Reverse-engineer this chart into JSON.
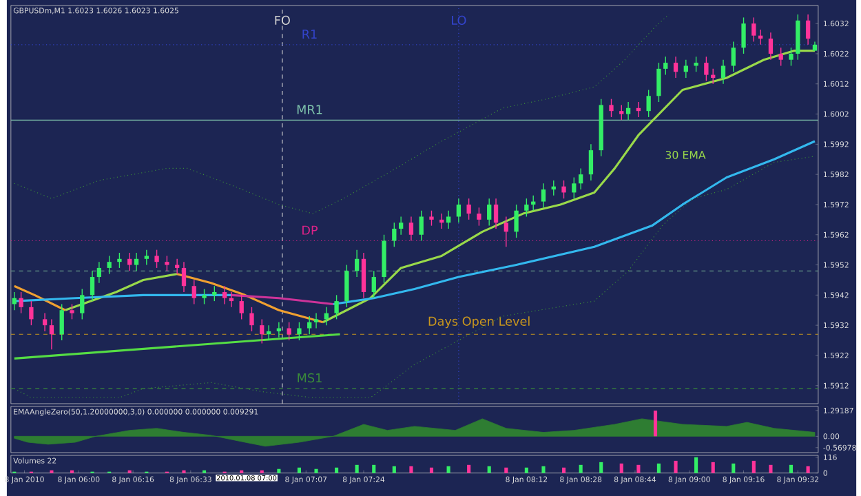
{
  "chart_data": [
    {
      "type": "candlestick",
      "title": "GBPUSDm,M1 1.6023 1.6026 1.6023 1.6025",
      "xlim": [
        "2010-01-08T05:40",
        "2010-01-08T09:38"
      ],
      "ylim": [
        1.5906,
        1.6038
      ],
      "tick_labels": "y",
      "yticks": [
        1.5912,
        1.5922,
        1.5932,
        1.5942,
        1.5952,
        1.5962,
        1.5972,
        1.5982,
        1.5992,
        1.6002,
        1.6012,
        1.6022,
        1.6032
      ],
      "x": [
        "2010-01-08T05:41",
        "2010-01-08T05:43",
        "2010-01-08T05:46",
        "2010-01-08T05:50",
        "2010-01-08T05:52",
        "2010-01-08T05:55",
        "2010-01-08T05:58",
        "2010-01-08T06:01",
        "2010-01-08T06:04",
        "2010-01-08T06:06",
        "2010-01-08T06:09",
        "2010-01-08T06:12",
        "2010-01-08T06:15",
        "2010-01-08T06:17",
        "2010-01-08T06:20",
        "2010-01-08T06:23",
        "2010-01-08T06:26",
        "2010-01-08T06:29",
        "2010-01-08T06:31",
        "2010-01-08T06:34",
        "2010-01-08T06:37",
        "2010-01-08T06:40",
        "2010-01-08T06:43",
        "2010-01-08T06:45",
        "2010-01-08T06:48",
        "2010-01-08T06:51",
        "2010-01-08T06:54",
        "2010-01-08T06:56",
        "2010-01-08T06:59",
        "2010-01-08T07:02",
        "2010-01-08T07:05",
        "2010-01-08T07:08",
        "2010-01-08T07:10",
        "2010-01-08T07:13",
        "2010-01-08T07:16",
        "2010-01-08T07:19",
        "2010-01-08T07:22",
        "2010-01-08T07:24",
        "2010-01-08T07:27",
        "2010-01-08T07:30",
        "2010-01-08T07:33",
        "2010-01-08T07:35",
        "2010-01-08T07:38",
        "2010-01-08T07:41",
        "2010-01-08T07:44",
        "2010-01-08T07:47",
        "2010-01-08T07:49",
        "2010-01-08T07:52",
        "2010-01-08T07:55",
        "2010-01-08T07:58",
        "2010-01-08T08:01",
        "2010-01-08T08:03",
        "2010-01-08T08:06",
        "2010-01-08T08:09",
        "2010-01-08T08:12",
        "2010-01-08T08:14",
        "2010-01-08T08:17",
        "2010-01-08T08:20",
        "2010-01-08T08:23",
        "2010-01-08T08:26",
        "2010-01-08T08:28",
        "2010-01-08T08:31",
        "2010-01-08T08:34",
        "2010-01-08T08:37",
        "2010-01-08T08:40",
        "2010-01-08T08:42",
        "2010-01-08T08:45",
        "2010-01-08T08:48",
        "2010-01-08T08:51",
        "2010-01-08T08:53",
        "2010-01-08T08:56",
        "2010-01-08T08:59",
        "2010-01-08T09:02",
        "2010-01-08T09:05",
        "2010-01-08T09:07",
        "2010-01-08T09:10",
        "2010-01-08T09:13",
        "2010-01-08T09:16",
        "2010-01-08T09:19",
        "2010-01-08T09:21",
        "2010-01-08T09:24",
        "2010-01-08T09:27",
        "2010-01-08T09:30",
        "2010-01-08T09:32",
        "2010-01-08T09:35",
        "2010-01-08T09:37"
      ],
      "ohlc": [
        [
          1.5939,
          1.5943,
          1.5937,
          1.5941
        ],
        [
          1.5941,
          1.5943,
          1.5936,
          1.5938
        ],
        [
          1.5938,
          1.594,
          1.5932,
          1.5934
        ],
        [
          1.5934,
          1.5936,
          1.593,
          1.5932
        ],
        [
          1.5932,
          1.5934,
          1.5924,
          1.5929
        ],
        [
          1.5929,
          1.5939,
          1.5927,
          1.5937
        ],
        [
          1.5937,
          1.5939,
          1.5934,
          1.5936
        ],
        [
          1.5936,
          1.5944,
          1.5934,
          1.5942
        ],
        [
          1.5942,
          1.595,
          1.594,
          1.5948
        ],
        [
          1.5948,
          1.5953,
          1.5946,
          1.5951
        ],
        [
          1.5951,
          1.5955,
          1.5949,
          1.5953
        ],
        [
          1.5953,
          1.5956,
          1.5951,
          1.5954
        ],
        [
          1.5954,
          1.5956,
          1.595,
          1.5952
        ],
        [
          1.5952,
          1.5956,
          1.595,
          1.5954
        ],
        [
          1.5954,
          1.5957,
          1.5952,
          1.5955
        ],
        [
          1.5955,
          1.5957,
          1.5951,
          1.5953
        ],
        [
          1.5953,
          1.5955,
          1.595,
          1.5952
        ],
        [
          1.5952,
          1.5954,
          1.5949,
          1.5951
        ],
        [
          1.5951,
          1.5953,
          1.5943,
          1.5945
        ],
        [
          1.5945,
          1.5947,
          1.5939,
          1.5941
        ],
        [
          1.5941,
          1.5944,
          1.5939,
          1.5942
        ],
        [
          1.5942,
          1.5945,
          1.594,
          1.5943
        ],
        [
          1.5943,
          1.5945,
          1.5939,
          1.5941
        ],
        [
          1.5941,
          1.5943,
          1.5938,
          1.594
        ],
        [
          1.594,
          1.5942,
          1.5934,
          1.5936
        ],
        [
          1.5936,
          1.5938,
          1.593,
          1.5932
        ],
        [
          1.5932,
          1.5934,
          1.5926,
          1.5929
        ],
        [
          1.5929,
          1.5932,
          1.5927,
          1.593
        ],
        [
          1.593,
          1.5933,
          1.5928,
          1.5931
        ],
        [
          1.5931,
          1.5933,
          1.5927,
          1.5929
        ],
        [
          1.5929,
          1.5933,
          1.5927,
          1.5931
        ],
        [
          1.5931,
          1.5935,
          1.5929,
          1.5933
        ],
        [
          1.5933,
          1.5936,
          1.5931,
          1.5934
        ],
        [
          1.5934,
          1.5938,
          1.5932,
          1.5936
        ],
        [
          1.5936,
          1.5942,
          1.5934,
          1.594
        ],
        [
          1.594,
          1.5952,
          1.5938,
          1.595
        ],
        [
          1.595,
          1.5957,
          1.5948,
          1.5954
        ],
        [
          1.5954,
          1.5956,
          1.5941,
          1.5943
        ],
        [
          1.5943,
          1.595,
          1.5941,
          1.5948
        ],
        [
          1.5948,
          1.5962,
          1.5946,
          1.596
        ],
        [
          1.596,
          1.5966,
          1.5958,
          1.5964
        ],
        [
          1.5964,
          1.5968,
          1.5962,
          1.5966
        ],
        [
          1.5966,
          1.5968,
          1.596,
          1.5962
        ],
        [
          1.5962,
          1.597,
          1.596,
          1.5968
        ],
        [
          1.5968,
          1.597,
          1.5965,
          1.5967
        ],
        [
          1.5967,
          1.5969,
          1.5964,
          1.5966
        ],
        [
          1.5966,
          1.597,
          1.5964,
          1.5968
        ],
        [
          1.5968,
          1.5974,
          1.5966,
          1.5972
        ],
        [
          1.5972,
          1.5974,
          1.5967,
          1.5969
        ],
        [
          1.5969,
          1.5971,
          1.5965,
          1.5967
        ],
        [
          1.5967,
          1.5974,
          1.5965,
          1.5972
        ],
        [
          1.5972,
          1.5974,
          1.5964,
          1.5966
        ],
        [
          1.5966,
          1.5968,
          1.5958,
          1.5963
        ],
        [
          1.5963,
          1.5972,
          1.5961,
          1.597
        ],
        [
          1.597,
          1.5974,
          1.5968,
          1.5972
        ],
        [
          1.5972,
          1.5975,
          1.597,
          1.5973
        ],
        [
          1.5973,
          1.5979,
          1.5971,
          1.5977
        ],
        [
          1.5977,
          1.598,
          1.5975,
          1.5978
        ],
        [
          1.5978,
          1.598,
          1.5974,
          1.5976
        ],
        [
          1.5976,
          1.5981,
          1.5974,
          1.5979
        ],
        [
          1.5979,
          1.5984,
          1.5977,
          1.5982
        ],
        [
          1.5982,
          1.5992,
          1.598,
          1.599
        ],
        [
          1.599,
          1.6007,
          1.5988,
          1.6005
        ],
        [
          1.6005,
          1.6007,
          1.6001,
          1.6003
        ],
        [
          1.6003,
          1.6005,
          1.6,
          1.6002
        ],
        [
          1.6002,
          1.6006,
          1.6,
          1.6004
        ],
        [
          1.6004,
          1.6006,
          1.6001,
          1.6003
        ],
        [
          1.6003,
          1.601,
          1.6001,
          1.6008
        ],
        [
          1.6008,
          1.6019,
          1.6006,
          1.6017
        ],
        [
          1.6017,
          1.6021,
          1.6015,
          1.6019
        ],
        [
          1.6019,
          1.6021,
          1.6014,
          1.6016
        ],
        [
          1.6016,
          1.602,
          1.6014,
          1.6018
        ],
        [
          1.6018,
          1.6021,
          1.6016,
          1.6019
        ],
        [
          1.6019,
          1.6021,
          1.6013,
          1.6015
        ],
        [
          1.6015,
          1.6017,
          1.6012,
          1.6014
        ],
        [
          1.6014,
          1.602,
          1.6012,
          1.6018
        ],
        [
          1.6018,
          1.6026,
          1.6016,
          1.6024
        ],
        [
          1.6024,
          1.6034,
          1.6022,
          1.6032
        ],
        [
          1.6032,
          1.6034,
          1.6026,
          1.6028
        ],
        [
          1.6028,
          1.603,
          1.6025,
          1.6027
        ],
        [
          1.6027,
          1.6029,
          1.602,
          1.6022
        ],
        [
          1.6022,
          1.6024,
          1.6018,
          1.602
        ],
        [
          1.602,
          1.6024,
          1.6018,
          1.6022
        ],
        [
          1.6022,
          1.6035,
          1.602,
          1.6033
        ],
        [
          1.6033,
          1.6035,
          1.6025,
          1.6027
        ],
        [
          1.6023,
          1.6026,
          1.6023,
          1.6025
        ]
      ],
      "colors": [
        "#33ee66",
        "#ff3399",
        "#ff3399",
        "#ff3399",
        "#ff3399",
        "#33ee66",
        "#ff3399",
        "#33ee66",
        "#33ee66",
        "#33ee66",
        "#33ee66",
        "#33ee66",
        "#ff3399",
        "#33ee66",
        "#33ee66",
        "#ff3399",
        "#ff3399",
        "#ff3399",
        "#ff3399",
        "#ff3399",
        "#33ee66",
        "#33ee66",
        "#ff3399",
        "#ff3399",
        "#ff3399",
        "#ff3399",
        "#ff3399",
        "#33ee66",
        "#33ee66",
        "#ff3399",
        "#33ee66",
        "#33ee66",
        "#33ee66",
        "#33ee66",
        "#33ee66",
        "#33ee66",
        "#33ee66",
        "#ff3399",
        "#33ee66",
        "#33ee66",
        "#33ee66",
        "#33ee66",
        "#ff3399",
        "#33ee66",
        "#ff3399",
        "#ff3399",
        "#33ee66",
        "#33ee66",
        "#ff3399",
        "#ff3399",
        "#33ee66",
        "#ff3399",
        "#ff3399",
        "#33ee66",
        "#33ee66",
        "#33ee66",
        "#33ee66",
        "#33ee66",
        "#ff3399",
        "#33ee66",
        "#33ee66",
        "#33ee66",
        "#33ee66",
        "#ff3399",
        "#ff3399",
        "#33ee66",
        "#ff3399",
        "#33ee66",
        "#33ee66",
        "#33ee66",
        "#ff3399",
        "#33ee66",
        "#33ee66",
        "#ff3399",
        "#ff3399",
        "#33ee66",
        "#33ee66",
        "#33ee66",
        "#ff3399",
        "#ff3399",
        "#ff3399",
        "#ff3399",
        "#33ee66",
        "#33ee66",
        "#ff3399",
        "#33ee66"
      ],
      "series": [
        {
          "name": "30 EMA",
          "type": "line",
          "color": "#99d94a",
          "x": [
            "2010-01-08T05:56",
            "2010-01-08T06:11",
            "2010-01-08T06:19",
            "2010-01-08T06:29",
            "2010-01-08T06:54",
            "2010-01-08T07:12",
            "2010-01-08T07:19",
            "2010-01-08T07:26",
            "2010-01-08T07:35",
            "2010-01-08T07:47",
            "2010-01-08T07:59",
            "2010-01-08T08:11",
            "2010-01-08T08:22",
            "2010-01-08T08:32",
            "2010-01-08T08:38",
            "2010-01-08T08:45",
            "2010-01-08T08:58",
            "2010-01-08T09:11",
            "2010-01-08T09:22",
            "2010-01-08T09:31",
            "2010-01-08T09:37"
          ],
          "values": [
            1.5937,
            1.5943,
            1.5947,
            1.5949,
            null,
            1.5933,
            1.5937,
            1.5941,
            1.5951,
            1.5955,
            1.5963,
            1.5969,
            1.5972,
            1.5976,
            1.5984,
            1.5995,
            1.601,
            1.6014,
            1.602,
            1.6023,
            1.6023
          ]
        },
        {
          "type": "line",
          "color": "#f0a030",
          "x": [
            "2010-01-08T05:41",
            "2010-01-08T05:47",
            "2010-01-08T05:56",
            "2010-01-08T06:12",
            "2010-01-08T06:29",
            "2010-01-08T06:39",
            "2010-01-08T06:49",
            "2010-01-08T06:59",
            "2010-01-08T07:12"
          ],
          "values": [
            1.5945,
            1.5942,
            1.5937,
            null,
            1.5949,
            1.5946,
            1.5942,
            1.5937,
            1.5933
          ]
        },
        {
          "type": "line",
          "color": "#33b8ee",
          "x": [
            "2010-01-08T05:41",
            "2010-01-08T05:59",
            "2010-01-08T06:19",
            "2010-01-08T06:29",
            "2010-01-08T06:45",
            "2010-01-08T07:00",
            "2010-01-08T07:15",
            "2010-01-08T07:27",
            "2010-01-08T07:39",
            "2010-01-08T07:52",
            "2010-01-08T08:09",
            "2010-01-08T08:32",
            "2010-01-08T08:49",
            "2010-01-08T08:58",
            "2010-01-08T09:11",
            "2010-01-08T09:25",
            "2010-01-08T09:37"
          ],
          "values": [
            1.594,
            1.5941,
            1.5942,
            1.5942,
            1.5942,
            null,
            1.5939,
            1.5941,
            1.5944,
            1.5948,
            1.5952,
            1.5958,
            1.5965,
            1.5972,
            1.5981,
            1.5987,
            1.5993
          ]
        },
        {
          "type": "line",
          "color": "#cc3399",
          "x": [
            "2010-01-08T06:45",
            "2010-01-08T06:59",
            "2010-01-08T07:15"
          ],
          "values": [
            1.5942,
            1.5941,
            1.5939
          ]
        },
        {
          "type": "line",
          "color": "#55dd44",
          "x": [
            "2010-01-08T05:41",
            "2010-01-08T07:17"
          ],
          "values": [
            1.5921,
            1.5929
          ]
        },
        {
          "type": "line",
          "color": "#3a8a3a",
          "line_style": "dotted",
          "x": [
            "2010-01-08T05:41",
            "2010-01-08T05:52",
            "2010-01-08T06:06",
            "2010-01-08T06:26",
            "2010-01-08T06:32",
            "2010-01-08T06:46",
            "2010-01-08T06:59",
            "2010-01-08T07:09",
            "2010-01-08T07:18",
            "2010-01-08T07:32",
            "2010-01-08T07:47",
            "2010-01-08T07:52",
            "2010-01-08T08:05",
            "2010-01-08T08:18",
            "2010-01-08T08:32",
            "2010-01-08T08:41",
            "2010-01-08T08:50",
            "2010-01-08T08:54"
          ],
          "values": [
            1.5979,
            1.5974,
            1.598,
            1.5984,
            1.5984,
            1.5978,
            1.5972,
            1.5969,
            1.5974,
            1.5983,
            1.5993,
            1.5996,
            1.6004,
            1.6007,
            1.6011,
            1.602,
            1.6031,
            1.6035
          ]
        },
        {
          "type": "line",
          "color": "#3a8a3a",
          "line_style": "dotted",
          "x": [
            "2010-01-08T05:41",
            "2010-01-08T05:46",
            "2010-01-08T06:12",
            "2010-01-08T06:19",
            "2010-01-08T06:39",
            "2010-01-08T06:54",
            "2010-01-08T07:09",
            "2010-01-08T07:26",
            "2010-01-08T07:39",
            "2010-01-08T07:52",
            "2010-01-08T08:05",
            "2010-01-08T08:32",
            "2010-01-08T08:42",
            "2010-01-08T08:52",
            "2010-01-08T09:01",
            "2010-01-08T09:11",
            "2010-01-08T09:25",
            "2010-01-08T09:37"
          ],
          "values": [
            1.5911,
            1.5908,
            1.5908,
            1.5911,
            1.5913,
            1.591,
            1.5908,
            1.5908,
            1.5919,
            1.5927,
            1.5935,
            1.594,
            1.595,
            1.5965,
            1.5974,
            1.5977,
            1.5986,
            1.5988
          ]
        }
      ],
      "ref_lines": [
        {
          "axis": "x",
          "value": "2010-01-08T07:00",
          "label": "FO",
          "color": "#d0d0d0",
          "line_style": "dashed"
        },
        {
          "axis": "x",
          "value": "2010-01-08T07:52",
          "label": "LO",
          "color": "#3344cc",
          "line_style": "dotted"
        },
        {
          "axis": "y",
          "value": 1.6025,
          "label": "R1",
          "color": "#3344cc",
          "line_style": "dotted"
        },
        {
          "axis": "y",
          "value": 1.6,
          "label": "MR1",
          "color": "#7fc4ac",
          "line_style": "solid"
        },
        {
          "axis": "y",
          "value": 1.596,
          "label": "DP",
          "color": "#dd2288",
          "line_style": "dotted"
        },
        {
          "axis": "y",
          "value": 1.595,
          "color": "#669988",
          "line_style": "dashed"
        },
        {
          "axis": "y",
          "value": 1.5929,
          "label": "Days Open Level",
          "color": "#c8961e",
          "line_style": "dashed"
        },
        {
          "axis": "y",
          "value": 1.5911,
          "label": "MS1",
          "color": "#3a8a3a",
          "line_style": "dashed"
        }
      ]
    },
    {
      "type": "area",
      "title": "EMAAngleZero(50,1.20000000,3,0) 0.000000 0.000000 0.009291",
      "xlim": [
        "2010-01-08T05:40",
        "2010-01-08T09:38"
      ],
      "ylim": [
        -0.82,
        1.5
      ],
      "tick_labels": "y",
      "yticks": [
        -0.56978,
        {
          "value": 0,
          "label": "0.00"
        },
        1.29187
      ],
      "series": [
        {
          "color": "#2e7d32",
          "x": [
            "2010-01-08T05:41",
            "2010-01-08T05:45",
            "2010-01-08T05:51",
            "2010-01-08T05:59",
            "2010-01-08T06:05",
            "2010-01-08T06:15",
            "2010-01-08T06:23",
            "2010-01-08T06:31",
            "2010-01-08T06:39",
            "2010-01-08T06:49",
            "2010-01-08T06:55",
            "2010-01-08T07:05",
            "2010-01-08T07:15",
            "2010-01-08T07:24",
            "2010-01-08T07:31",
            "2010-01-08T07:39",
            "2010-01-08T07:51",
            "2010-01-08T07:59",
            "2010-01-08T08:06",
            "2010-01-08T08:17",
            "2010-01-08T08:26",
            "2010-01-08T08:38",
            "2010-01-08T08:46",
            "2010-01-08T08:58",
            "2010-01-08T09:11",
            "2010-01-08T09:17",
            "2010-01-08T09:25",
            "2010-01-08T09:37"
          ],
          "values": [
            -0.1,
            -0.3,
            -0.4,
            -0.3,
            0,
            0.3,
            0.4,
            0.2,
            0.05,
            -0.3,
            -0.5,
            -0.3,
            0,
            0.6,
            0.3,
            0.5,
            0.3,
            0.88,
            0.4,
            0.2,
            0.3,
            0.6,
            0.88,
            0.6,
            0.5,
            0.7,
            0.4,
            0.2
          ]
        },
        {
          "type": "bar",
          "color": "#ff3399",
          "x": [
            "2010-01-08T08:50"
          ],
          "values": [
            1.29
          ]
        }
      ]
    },
    {
      "type": "bar",
      "title": "Volumes 22",
      "xlim": [
        "2010-01-08T05:40",
        "2010-01-08T09:38"
      ],
      "ylim": [
        0,
        130
      ],
      "yticks": [
        0,
        116
      ],
      "xticks": [
        {
          "value": "2010-01-08T05:44",
          "label": "8 Jan 2010"
        },
        {
          "value": "2010-01-08T06:00",
          "label": "8 Jan 06:00"
        },
        {
          "value": "2010-01-08T06:16",
          "label": "8 Jan 06:16"
        },
        {
          "value": "2010-01-08T06:33",
          "label": "8 Jan 06:33"
        },
        {
          "value": "2010-01-08T07:07",
          "label": "8 Jan 07:07"
        },
        {
          "value": "2010-01-08T07:24",
          "label": "8 Jan 07:24"
        },
        {
          "value": "2010-01-08T08:12",
          "label": "8 Jan 08:12"
        },
        {
          "value": "2010-01-08T08:28",
          "label": "8 Jan 08:28"
        },
        {
          "value": "2010-01-08T08:44",
          "label": "8 Jan 08:44"
        },
        {
          "value": "2010-01-08T09:00",
          "label": "8 Jan 09:00"
        },
        {
          "value": "2010-01-08T09:16",
          "label": "8 Jan 09:16"
        },
        {
          "value": "2010-01-08T09:32",
          "label": "8 Jan 09:32"
        }
      ],
      "x": [
        "2010-01-08T05:41",
        "2010-01-08T05:46",
        "2010-01-08T05:52",
        "2010-01-08T05:58",
        "2010-01-08T06:04",
        "2010-01-08T06:09",
        "2010-01-08T06:15",
        "2010-01-08T06:20",
        "2010-01-08T06:26",
        "2010-01-08T06:31",
        "2010-01-08T06:37",
        "2010-01-08T06:43",
        "2010-01-08T06:48",
        "2010-01-08T06:54",
        "2010-01-08T06:59",
        "2010-01-08T07:05",
        "2010-01-08T07:10",
        "2010-01-08T07:16",
        "2010-01-08T07:22",
        "2010-01-08T07:27",
        "2010-01-08T07:33",
        "2010-01-08T07:38",
        "2010-01-08T07:44",
        "2010-01-08T07:49",
        "2010-01-08T07:55",
        "2010-01-08T08:01",
        "2010-01-08T08:06",
        "2010-01-08T08:12",
        "2010-01-08T08:17",
        "2010-01-08T08:23",
        "2010-01-08T08:28",
        "2010-01-08T08:34",
        "2010-01-08T08:40",
        "2010-01-08T08:45",
        "2010-01-08T08:51",
        "2010-01-08T08:56",
        "2010-01-08T09:02",
        "2010-01-08T09:07",
        "2010-01-08T09:13",
        "2010-01-08T09:19",
        "2010-01-08T09:24",
        "2010-01-08T09:30",
        "2010-01-08T09:35"
      ],
      "values": [
        10,
        10,
        20,
        20,
        10,
        10,
        20,
        10,
        10,
        20,
        20,
        10,
        20,
        20,
        30,
        40,
        30,
        40,
        60,
        60,
        50,
        50,
        40,
        50,
        60,
        50,
        40,
        40,
        50,
        40,
        60,
        80,
        70,
        60,
        70,
        90,
        116,
        80,
        70,
        90,
        60,
        60,
        50
      ],
      "colors": [
        "#33ee66",
        "#ff3399",
        "#ff3399",
        "#ff3399",
        "#33ee66",
        "#33ee66",
        "#ff3399",
        "#33ee66",
        "#ff3399",
        "#ff3399",
        "#33ee66",
        "#ff3399",
        "#ff3399",
        "#ff3399",
        "#33ee66",
        "#33ee66",
        "#33ee66",
        "#33ee66",
        "#33ee66",
        "#33ee66",
        "#33ee66",
        "#ff3399",
        "#ff3399",
        "#33ee66",
        "#ff3399",
        "#33ee66",
        "#ff3399",
        "#33ee66",
        "#33ee66",
        "#ff3399",
        "#33ee66",
        "#33ee66",
        "#ff3399",
        "#ff3399",
        "#33ee66",
        "#ff3399",
        "#33ee66",
        "#ff3399",
        "#33ee66",
        "#ff3399",
        "#ff3399",
        "#33ee66",
        "#ff3399"
      ],
      "annotations": [
        "2010.01.08 07:00"
      ]
    }
  ]
}
